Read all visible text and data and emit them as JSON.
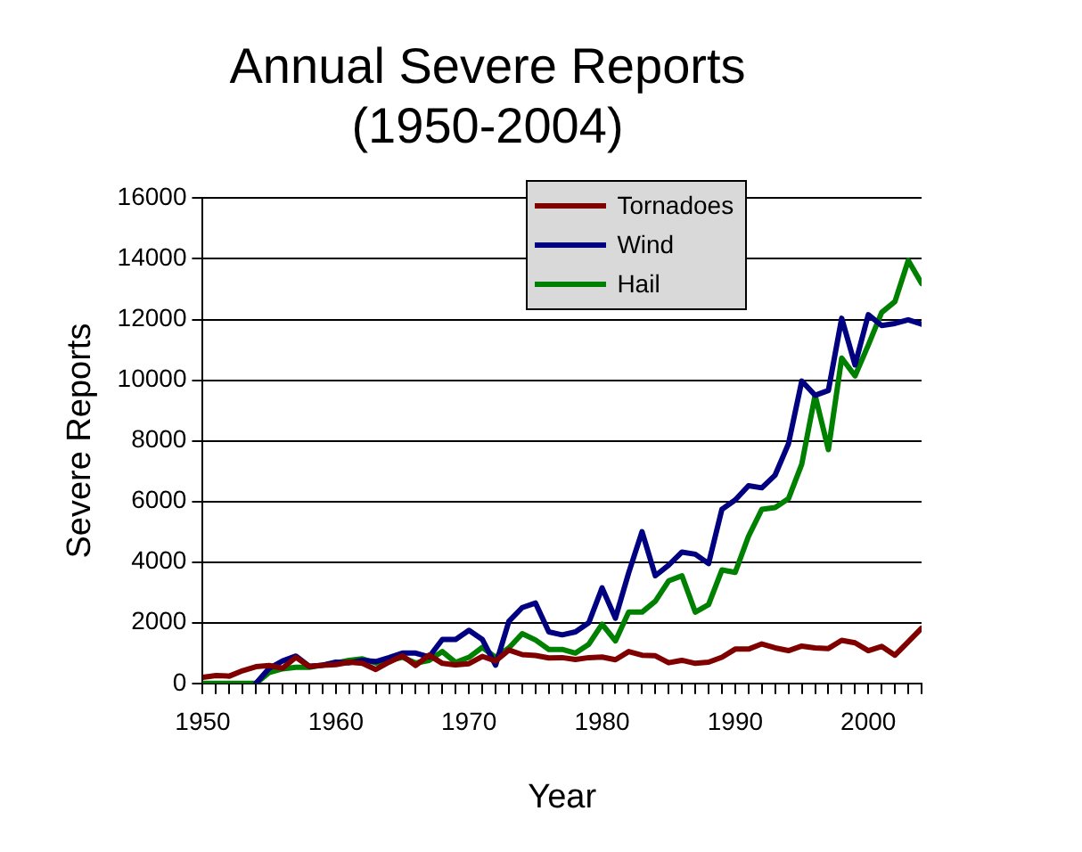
{
  "chart_data": {
    "type": "line",
    "title": "Annual Severe Reports\n(1950-2004)",
    "xlabel": "Year",
    "ylabel": "Severe Reports",
    "x": [
      1950,
      1951,
      1952,
      1953,
      1954,
      1955,
      1956,
      1957,
      1958,
      1959,
      1960,
      1961,
      1962,
      1963,
      1964,
      1965,
      1966,
      1967,
      1968,
      1969,
      1970,
      1971,
      1972,
      1973,
      1974,
      1975,
      1976,
      1977,
      1978,
      1979,
      1980,
      1981,
      1982,
      1983,
      1984,
      1985,
      1986,
      1987,
      1988,
      1989,
      1990,
      1991,
      1992,
      1993,
      1994,
      1995,
      1996,
      1997,
      1998,
      1999,
      2000,
      2001,
      2002,
      2003,
      2004
    ],
    "series": [
      {
        "name": "Tornadoes",
        "color": "#800000",
        "values": [
          200,
          260,
          240,
          420,
          550,
          590,
          500,
          860,
          560,
          600,
          620,
          700,
          660,
          460,
          700,
          910,
          590,
          930,
          660,
          610,
          650,
          890,
          740,
          1100,
          950,
          920,
          840,
          850,
          790,
          850,
          870,
          780,
          1050,
          930,
          910,
          680,
          760,
          660,
          700,
          860,
          1130,
          1130,
          1300,
          1170,
          1080,
          1230,
          1170,
          1150,
          1420,
          1340,
          1080,
          1220,
          930,
          1370,
          1820
        ]
      },
      {
        "name": "Wind",
        "color": "#000080",
        "values": [
          null,
          null,
          null,
          null,
          0,
          500,
          740,
          900,
          560,
          600,
          700,
          680,
          760,
          720,
          850,
          1000,
          1000,
          870,
          1450,
          1450,
          1750,
          1450,
          600,
          2050,
          2500,
          2650,
          1700,
          1600,
          1700,
          2000,
          3150,
          2150,
          3650,
          5000,
          3550,
          3900,
          4330,
          4260,
          3950,
          5740,
          6050,
          6520,
          6450,
          6870,
          7900,
          9970,
          9500,
          9660,
          12040,
          10500,
          12160,
          11800,
          11870,
          11990,
          11850
        ]
      },
      {
        "name": "Hail",
        "color": "#008000",
        "values": [
          0,
          0,
          0,
          0,
          0,
          360,
          480,
          530,
          530,
          600,
          670,
          760,
          810,
          670,
          760,
          860,
          670,
          760,
          1050,
          690,
          860,
          1190,
          860,
          1170,
          1640,
          1430,
          1120,
          1120,
          1000,
          1290,
          1950,
          1400,
          2350,
          2350,
          2710,
          3380,
          3550,
          2350,
          2600,
          3740,
          3660,
          4850,
          5740,
          5800,
          6090,
          7230,
          9500,
          7710,
          10730,
          10140,
          11160,
          12230,
          12590,
          13950,
          13190
        ]
      }
    ],
    "xlim": [
      1950,
      2004
    ],
    "xticks": [
      1950,
      {
        "value": 1951,
        "label": null
      },
      {
        "value": 1952,
        "label": null
      },
      {
        "value": 1953,
        "label": null
      },
      {
        "value": 1954,
        "label": null
      },
      {
        "value": 1955,
        "label": null
      },
      {
        "value": 1956,
        "label": null
      },
      {
        "value": 1957,
        "label": null
      },
      {
        "value": 1958,
        "label": null
      },
      {
        "value": 1959,
        "label": null
      },
      1960,
      {
        "value": 1961,
        "label": null
      },
      {
        "value": 1962,
        "label": null
      },
      {
        "value": 1963,
        "label": null
      },
      {
        "value": 1964,
        "label": null
      },
      {
        "value": 1965,
        "label": null
      },
      {
        "value": 1966,
        "label": null
      },
      {
        "value": 1967,
        "label": null
      },
      {
        "value": 1968,
        "label": null
      },
      {
        "value": 1969,
        "label": null
      },
      1970,
      {
        "value": 1971,
        "label": null
      },
      {
        "value": 1972,
        "label": null
      },
      {
        "value": 1973,
        "label": null
      },
      {
        "value": 1974,
        "label": null
      },
      {
        "value": 1975,
        "label": null
      },
      {
        "value": 1976,
        "label": null
      },
      {
        "value": 1977,
        "label": null
      },
      {
        "value": 1978,
        "label": null
      },
      {
        "value": 1979,
        "label": null
      },
      1980,
      {
        "value": 1981,
        "label": null
      },
      {
        "value": 1982,
        "label": null
      },
      {
        "value": 1983,
        "label": null
      },
      {
        "value": 1984,
        "label": null
      },
      {
        "value": 1985,
        "label": null
      },
      {
        "value": 1986,
        "label": null
      },
      {
        "value": 1987,
        "label": null
      },
      {
        "value": 1988,
        "label": null
      },
      {
        "value": 1989,
        "label": null
      },
      1990,
      {
        "value": 1991,
        "label": null
      },
      {
        "value": 1992,
        "label": null
      },
      {
        "value": 1993,
        "label": null
      },
      {
        "value": 1994,
        "label": null
      },
      {
        "value": 1995,
        "label": null
      },
      {
        "value": 1996,
        "label": null
      },
      {
        "value": 1997,
        "label": null
      },
      {
        "value": 1998,
        "label": null
      },
      {
        "value": 1999,
        "label": null
      },
      2000,
      {
        "value": 2001,
        "label": null
      },
      {
        "value": 2002,
        "label": null
      },
      {
        "value": 2003,
        "label": null
      },
      {
        "value": 2004,
        "label": null
      }
    ],
    "ylim": [
      0,
      16000
    ],
    "yticks": [
      0,
      2000,
      4000,
      6000,
      8000,
      10000,
      12000,
      14000,
      16000
    ],
    "grid": "y",
    "legend": "top right",
    "marker": "none",
    "line_style": "solid"
  }
}
